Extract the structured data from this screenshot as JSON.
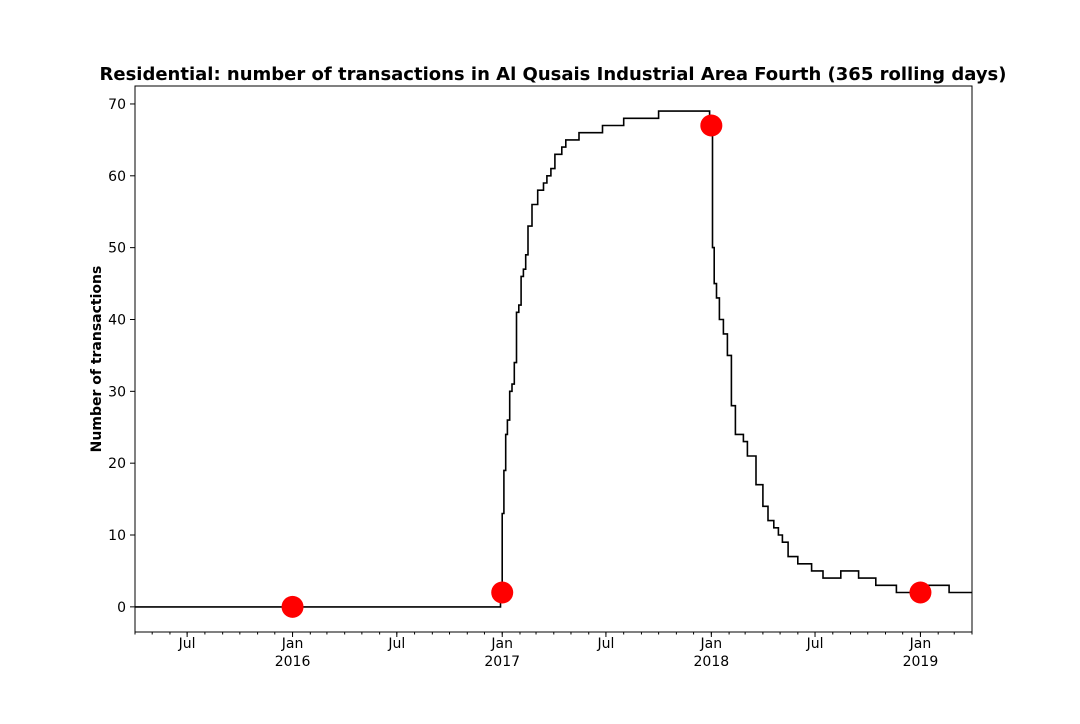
{
  "chart_data": {
    "type": "line",
    "title": "Residential: number of transactions in Al Qusais Industrial Area Fourth (365 rolling days)",
    "xlabel": "",
    "ylabel": "Number of transactions",
    "ylim": [
      -3.5,
      72.5
    ],
    "xlim": [
      "2015-04-01",
      "2019-04-01"
    ],
    "yticks": [
      0,
      10,
      20,
      30,
      40,
      50,
      60,
      70
    ],
    "xticks": [
      {
        "date": "2015-07-01",
        "label": "Jul"
      },
      {
        "date": "2016-01-01",
        "label": "Jan",
        "sublabel": "2016"
      },
      {
        "date": "2016-07-01",
        "label": "Jul"
      },
      {
        "date": "2017-01-01",
        "label": "Jan",
        "sublabel": "2017"
      },
      {
        "date": "2017-07-01",
        "label": "Jul"
      },
      {
        "date": "2018-01-01",
        "label": "Jan",
        "sublabel": "2018"
      },
      {
        "date": "2018-07-01",
        "label": "Jul"
      },
      {
        "date": "2019-01-01",
        "label": "Jan",
        "sublabel": "2019"
      }
    ],
    "grid": false,
    "line_color": "#000000",
    "marker_color": "#ff0000",
    "series": [
      {
        "x": [
          "2015-04-01",
          "2016-12-27",
          "2016-12-29",
          "2017-01-01",
          "2017-01-04",
          "2017-01-07",
          "2017-01-10",
          "2017-01-14",
          "2017-01-18",
          "2017-01-22",
          "2017-01-26",
          "2017-01-30",
          "2017-02-03",
          "2017-02-07",
          "2017-02-11",
          "2017-02-15",
          "2017-02-22",
          "2017-03-04",
          "2017-03-14",
          "2017-03-20",
          "2017-03-27",
          "2017-04-03",
          "2017-04-08",
          "2017-04-15",
          "2017-04-22",
          "2017-05-01",
          "2017-05-15",
          "2017-06-01",
          "2017-06-25",
          "2017-08-01",
          "2017-09-01",
          "2017-10-01",
          "2017-11-15",
          "2017-12-01",
          "2017-12-22",
          "2017-12-27",
          "2017-12-29",
          "2018-01-03",
          "2018-01-06",
          "2018-01-10",
          "2018-01-15",
          "2018-01-22",
          "2018-01-29",
          "2018-02-05",
          "2018-02-12",
          "2018-02-19",
          "2018-02-26",
          "2018-03-05",
          "2018-03-20",
          "2018-04-01",
          "2018-04-10",
          "2018-04-20",
          "2018-04-28",
          "2018-05-05",
          "2018-05-15",
          "2018-06-01",
          "2018-06-25",
          "2018-07-15",
          "2018-08-15",
          "2018-09-15",
          "2018-10-15",
          "2018-11-01",
          "2018-11-20",
          "2018-12-01",
          "2018-12-10",
          "2019-01-01",
          "2019-01-15",
          "2019-02-20",
          "2019-04-01"
        ],
        "y": [
          0,
          0,
          2,
          13,
          19,
          24,
          26,
          30,
          31,
          34,
          41,
          42,
          46,
          47,
          49,
          53,
          56,
          58,
          59,
          60,
          61,
          63,
          63,
          64,
          65,
          65,
          66,
          66,
          67,
          68,
          68,
          69,
          69,
          69,
          69,
          69,
          67,
          50,
          45,
          43,
          40,
          38,
          35,
          28,
          24,
          24,
          23,
          21,
          17,
          14,
          12,
          11,
          10,
          9,
          7,
          6,
          5,
          4,
          5,
          4,
          3,
          3,
          2,
          2,
          2,
          3,
          3,
          2,
          2
        ]
      }
    ],
    "markers": [
      {
        "x": "2016-01-01",
        "y": 0
      },
      {
        "x": "2017-01-01",
        "y": 2
      },
      {
        "x": "2018-01-01",
        "y": 67
      },
      {
        "x": "2019-01-01",
        "y": 2
      }
    ]
  }
}
